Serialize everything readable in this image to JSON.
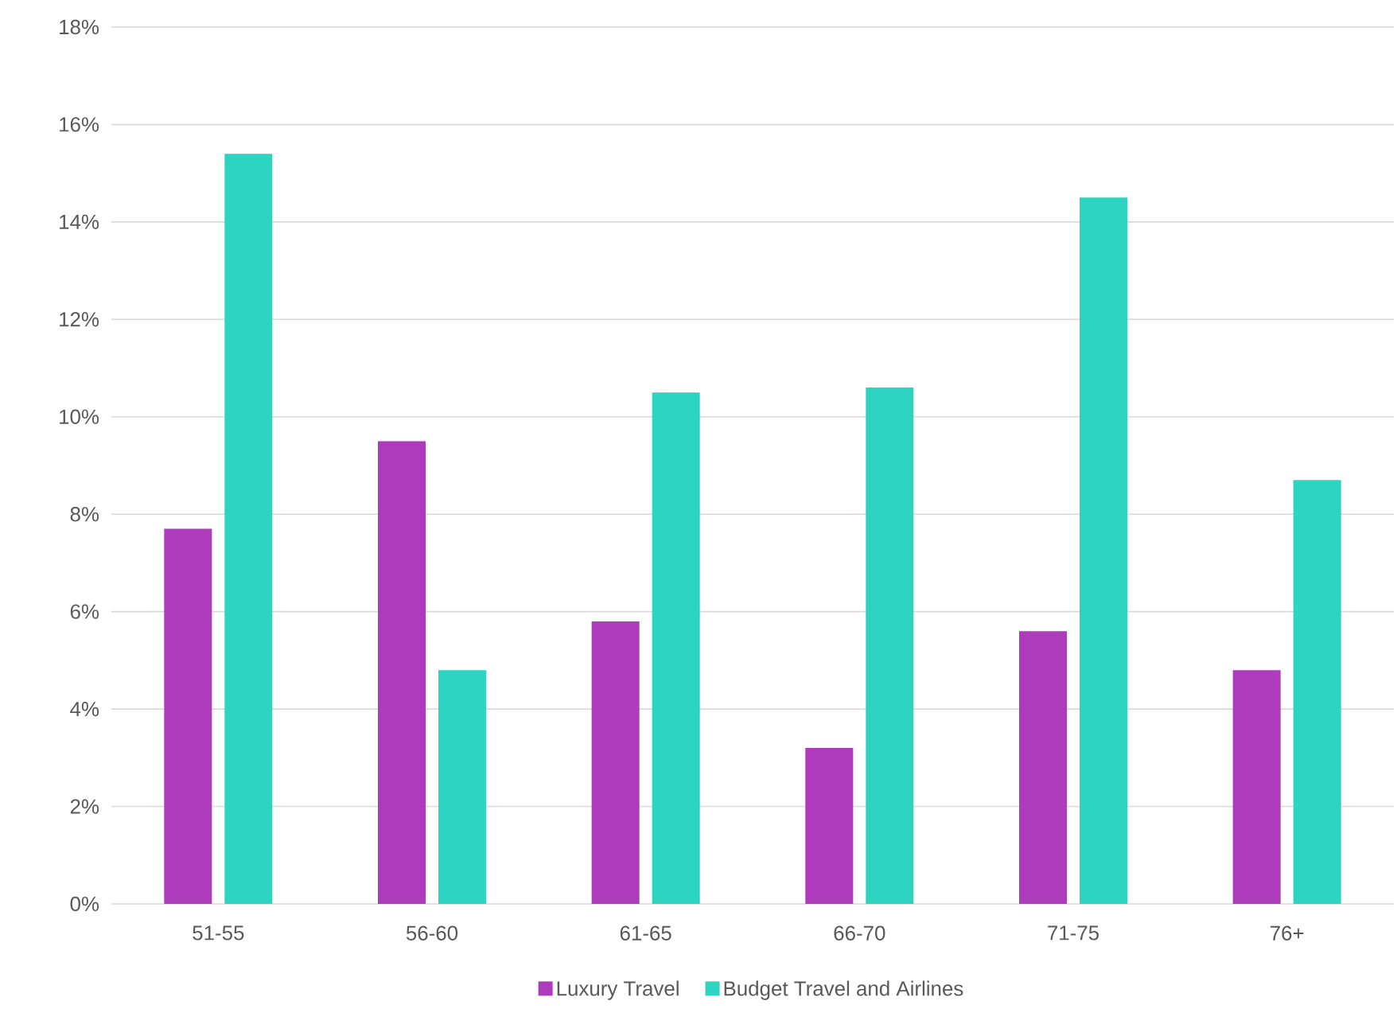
{
  "chart_data": {
    "type": "bar",
    "categories": [
      "51-55",
      "56-60",
      "61-65",
      "66-70",
      "71-75",
      "76+"
    ],
    "series": [
      {
        "name": "Luxury Travel",
        "color": "#ae3bbb",
        "values": [
          7.7,
          9.5,
          5.8,
          3.2,
          5.6,
          4.8
        ]
      },
      {
        "name": "Budget Travel and Airlines",
        "color": "#2dd4c2",
        "values": [
          15.4,
          4.8,
          10.5,
          10.6,
          14.5,
          8.7
        ]
      }
    ],
    "ylim": [
      0,
      18
    ],
    "yticks": [
      {
        "value": 0,
        "label": "0%"
      },
      {
        "value": 2,
        "label": "2%"
      },
      {
        "value": 4,
        "label": "4%"
      },
      {
        "value": 6,
        "label": "6%"
      },
      {
        "value": 8,
        "label": "8%"
      },
      {
        "value": 10,
        "label": "10%"
      },
      {
        "value": 12,
        "label": "12%"
      },
      {
        "value": 14,
        "label": "14%"
      },
      {
        "value": 16,
        "label": "16%"
      },
      {
        "value": 18,
        "label": "18%"
      }
    ],
    "grid": "y",
    "legend": "bottom"
  }
}
